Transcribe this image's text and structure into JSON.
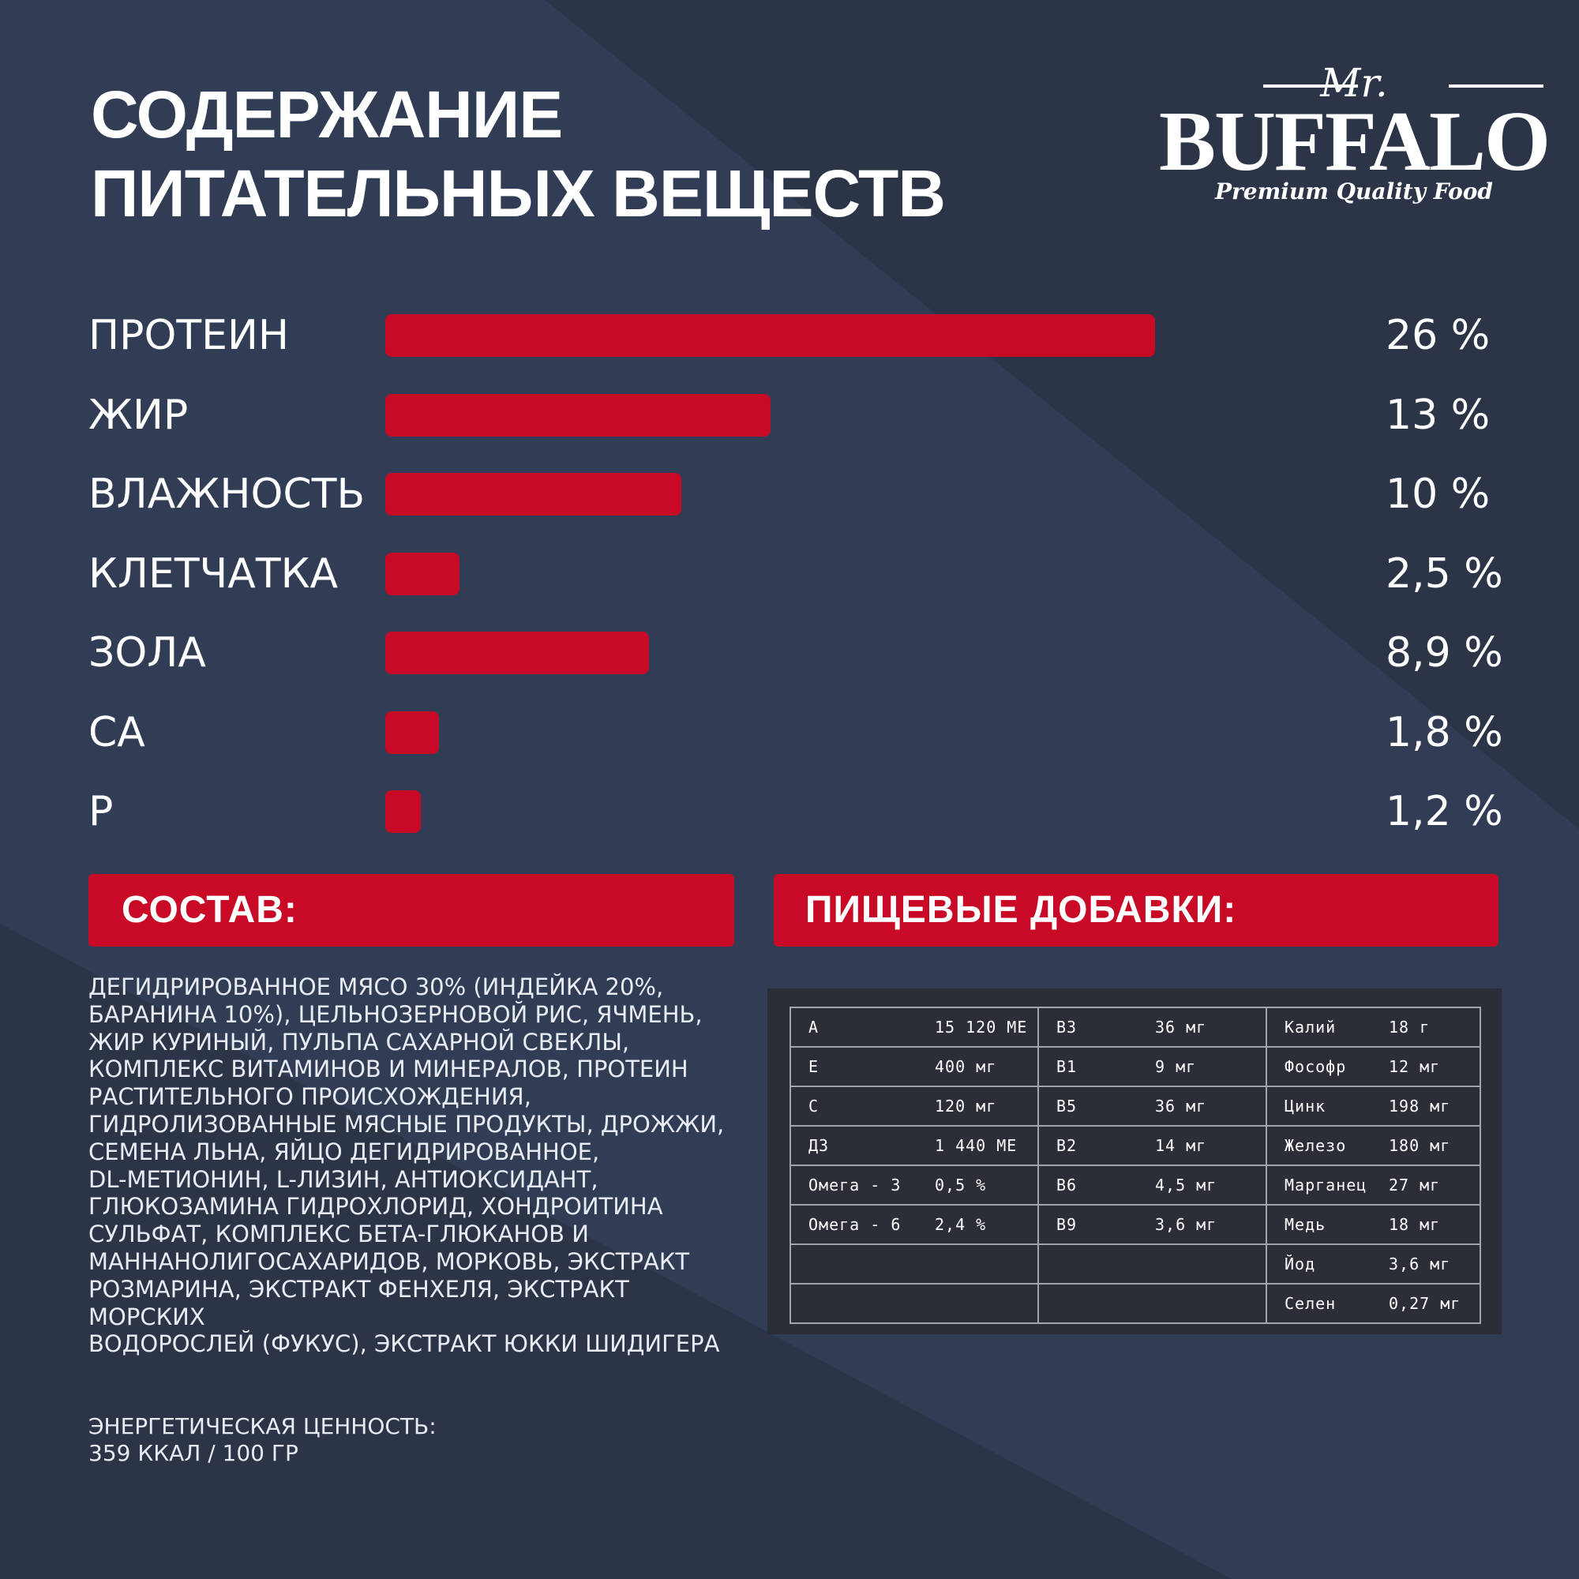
{
  "title": {
    "line1": "СОДЕРЖАНИЕ",
    "line2": "ПИТАТЕЛЬНЫХ ВЕЩЕСТВ"
  },
  "logo": {
    "prefix": "Mr.",
    "name": "BUFFALO",
    "tagline": "Premium Quality Food"
  },
  "colors": {
    "background": "#2b3547",
    "background_light": "#313d55",
    "accent": "#c90a26",
    "table_bg": "#2b2e36"
  },
  "chart_data": {
    "type": "bar",
    "orientation": "horizontal",
    "title": "СОДЕРЖАНИЕ ПИТАТЕЛЬНЫХ ВЕЩЕСТВ",
    "categories": [
      "ПРОТЕИН",
      "ЖИР",
      "ВЛАЖНОСТЬ",
      "КЛЕТЧАТКА",
      "ЗОЛА",
      "CA",
      "P"
    ],
    "values": [
      26,
      13,
      10,
      2.5,
      8.9,
      1.8,
      1.2
    ],
    "value_labels": [
      "26 %",
      "13 %",
      "10 %",
      "2,5 %",
      "8,9 %",
      "1,8 %",
      "1,2 %"
    ],
    "unit": "%",
    "xlim": [
      0,
      26
    ]
  },
  "composition": {
    "heading": "СОСТАВ:",
    "lines": [
      "ДЕГИДРИРОВАННОЕ МЯСО 30% (ИНДЕЙКА 20%,",
      "БАРАНИНА 10%), ЦЕЛЬНОЗЕРНОВОЙ РИС, ЯЧМЕНЬ,",
      "ЖИР КУРИНЫЙ, ПУЛЬПА САХАРНОЙ СВЕКЛЫ,",
      "КОМПЛЕКС ВИТАМИНОВ И МИНЕРАЛОВ, ПРОТЕИН",
      "РАСТИТЕЛЬНОГО ПРОИСХОЖДЕНИЯ,",
      "ГИДРОЛИЗОВАННЫЕ МЯСНЫЕ ПРОДУКТЫ, ДРОЖЖИ,",
      "СЕМЕНА ЛЬНА, ЯЙЦО ДЕГИДРИРОВАННОЕ,",
      "DL-МЕТИОНИН, L-ЛИЗИН, АНТИОКСИДАНТ,",
      "ГЛЮКОЗАМИНА ГИДРОХЛОРИД, ХОНДРОИТИНА",
      "СУЛЬФАТ, КОМПЛЕКС БЕТА-ГЛЮКАНОВ И",
      "МАННАНОЛИГОСАХАРИДОВ, МОРКОВЬ, ЭКСТРАКТ",
      "РОЗМАРИНА, ЭКСТРАКТ ФЕНХЕЛЯ, ЭКСТРАКТ МОРСКИХ",
      "ВОДОРОСЛЕЙ (ФУКУС), ЭКСТРАКТ ЮККИ ШИДИГЕРА"
    ]
  },
  "additives": {
    "heading": "ПИЩЕВЫЕ ДОБАВКИ:",
    "rows": [
      [
        [
          "A",
          "15 120 МЕ"
        ],
        [
          "B3",
          "36 мг"
        ],
        [
          "Калий",
          "18 г"
        ]
      ],
      [
        [
          "E",
          "400 мг"
        ],
        [
          "B1",
          "9 мг"
        ],
        [
          "Фософр",
          "12 мг"
        ]
      ],
      [
        [
          "C",
          "120 мг"
        ],
        [
          "B5",
          "36 мг"
        ],
        [
          "Цинк",
          "198 мг"
        ]
      ],
      [
        [
          "Д3",
          "1 440 МЕ"
        ],
        [
          "B2",
          "14 мг"
        ],
        [
          "Железо",
          "180 мг"
        ]
      ],
      [
        [
          "Омега - 3",
          "0,5 %"
        ],
        [
          "B6",
          "4,5 мг"
        ],
        [
          "Марганец",
          "27 мг"
        ]
      ],
      [
        [
          "Омега - 6",
          "2,4 %"
        ],
        [
          "B9",
          "3,6 мг"
        ],
        [
          "Медь",
          "18 мг"
        ]
      ],
      [
        [
          "",
          ""
        ],
        [
          "",
          ""
        ],
        [
          "Йод",
          "3,6 мг"
        ]
      ],
      [
        [
          "",
          ""
        ],
        [
          "",
          ""
        ],
        [
          "Селен",
          "0,27 мг"
        ]
      ]
    ]
  },
  "energy": {
    "label": "ЭНЕРГЕТИЧЕСКАЯ ЦЕННОСТЬ:",
    "value": "359 ККАЛ / 100 ГР"
  }
}
